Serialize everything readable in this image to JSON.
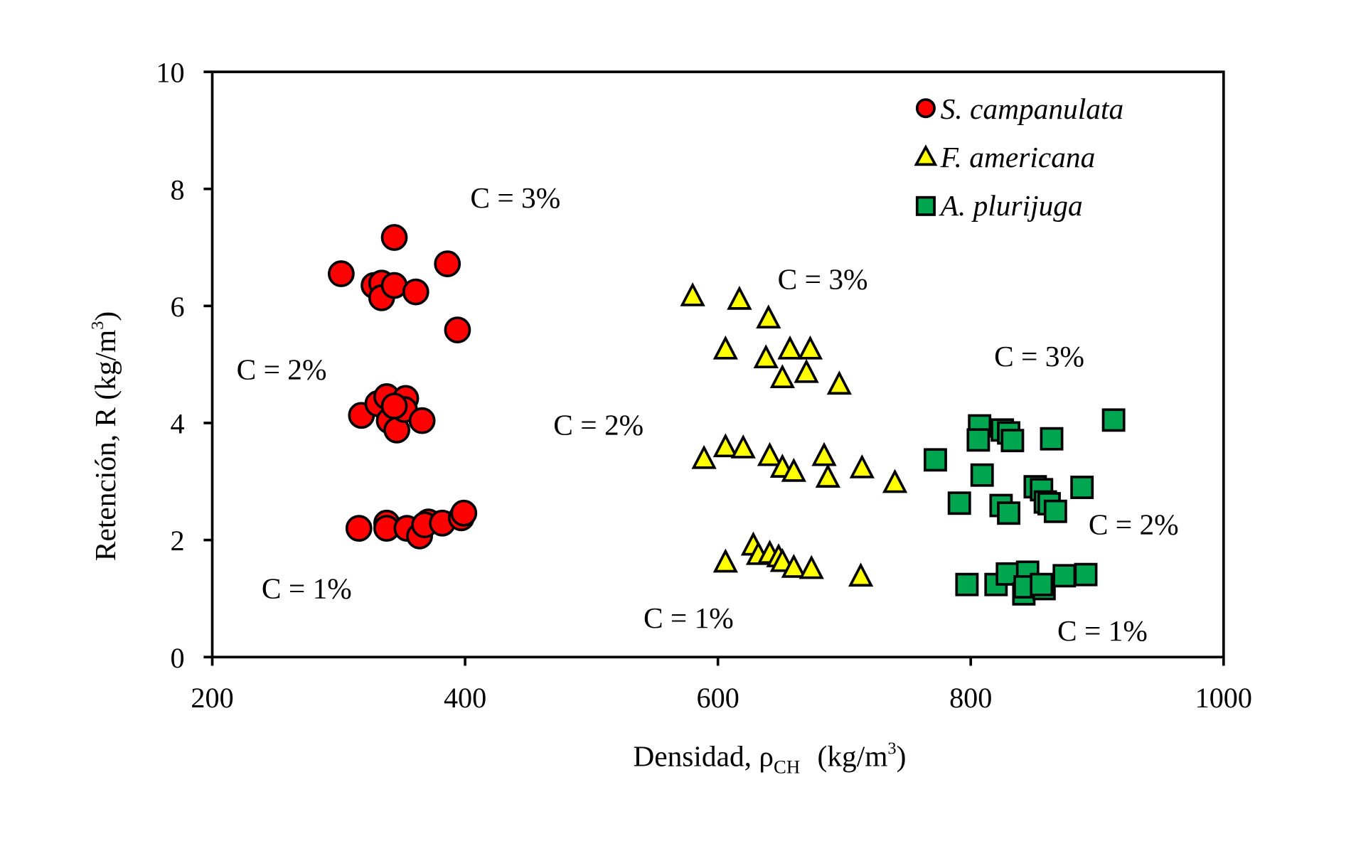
{
  "chart_data": {
    "type": "scatter",
    "title": "",
    "xlabel": "Densidad, ρCH (kg/m³)",
    "xlabel_parts": {
      "main": "Densidad, ρ",
      "sub": "CH",
      "unit": "(kg/m",
      "sup": "3",
      "close": ")"
    },
    "ylabel": "Retención, R (kg/m³)",
    "ylabel_parts": {
      "main": "Retención, R  (kg/m",
      "sup": "3",
      "close": ")"
    },
    "xlim": [
      200,
      1000
    ],
    "ylim": [
      0,
      10
    ],
    "xticks": [
      "200",
      "400",
      "600",
      "800",
      "1000"
    ],
    "yticks": [
      "0",
      "2",
      "4",
      "6",
      "8",
      "10"
    ],
    "grid": false,
    "legend_position": "top-right",
    "series": [
      {
        "name": "S. campanulata",
        "marker": "circle",
        "color": "#ff0000",
        "points": [
          [
            302,
            6.55
          ],
          [
            344,
            7.17
          ],
          [
            386,
            6.72
          ],
          [
            328,
            6.35
          ],
          [
            334,
            6.39
          ],
          [
            334,
            6.14
          ],
          [
            344,
            6.35
          ],
          [
            361,
            6.24
          ],
          [
            394,
            5.59
          ],
          [
            318,
            4.13
          ],
          [
            331,
            4.33
          ],
          [
            338,
            4.45
          ],
          [
            340,
            4.04
          ],
          [
            346,
            3.88
          ],
          [
            353,
            4.42
          ],
          [
            352,
            4.23
          ],
          [
            344,
            4.29
          ],
          [
            366,
            4.04
          ],
          [
            316,
            2.2
          ],
          [
            338,
            2.29
          ],
          [
            338,
            2.2
          ],
          [
            354,
            2.2
          ],
          [
            364,
            2.07
          ],
          [
            371,
            2.31
          ],
          [
            368,
            2.26
          ],
          [
            382,
            2.29
          ],
          [
            397,
            2.38
          ],
          [
            399,
            2.46
          ]
        ]
      },
      {
        "name": "F. americana",
        "marker": "triangle",
        "color": "#ffff00",
        "points": [
          [
            580,
            6.15
          ],
          [
            617,
            6.09
          ],
          [
            640,
            5.77
          ],
          [
            606,
            5.24
          ],
          [
            638,
            5.09
          ],
          [
            657,
            5.24
          ],
          [
            673,
            5.24
          ],
          [
            651,
            4.75
          ],
          [
            670,
            4.84
          ],
          [
            696,
            4.64
          ],
          [
            589,
            3.37
          ],
          [
            606,
            3.57
          ],
          [
            620,
            3.55
          ],
          [
            641,
            3.42
          ],
          [
            651,
            3.22
          ],
          [
            660,
            3.15
          ],
          [
            684,
            3.42
          ],
          [
            687,
            3.05
          ],
          [
            714,
            3.21
          ],
          [
            740,
            2.96
          ],
          [
            606,
            1.6
          ],
          [
            628,
            1.89
          ],
          [
            632,
            1.73
          ],
          [
            641,
            1.75
          ],
          [
            648,
            1.69
          ],
          [
            651,
            1.61
          ],
          [
            660,
            1.51
          ],
          [
            674,
            1.49
          ],
          [
            713,
            1.36
          ]
        ]
      },
      {
        "name": "A. plurijuga",
        "marker": "square",
        "color": "#00a550",
        "points": [
          [
            913,
            4.05
          ],
          [
            807,
            3.95
          ],
          [
            825,
            3.88
          ],
          [
            830,
            3.83
          ],
          [
            806,
            3.71
          ],
          [
            833,
            3.7
          ],
          [
            864,
            3.73
          ],
          [
            772,
            3.37
          ],
          [
            809,
            3.11
          ],
          [
            851,
            2.91
          ],
          [
            856,
            2.86
          ],
          [
            888,
            2.9
          ],
          [
            791,
            2.63
          ],
          [
            824,
            2.59
          ],
          [
            830,
            2.46
          ],
          [
            859,
            2.65
          ],
          [
            862,
            2.62
          ],
          [
            867,
            2.49
          ],
          [
            797,
            1.24
          ],
          [
            820,
            1.24
          ],
          [
            829,
            1.42
          ],
          [
            845,
            1.45
          ],
          [
            842,
            1.08
          ],
          [
            843,
            1.2
          ],
          [
            858,
            1.17
          ],
          [
            856,
            1.24
          ],
          [
            874,
            1.39
          ],
          [
            891,
            1.41
          ]
        ]
      }
    ],
    "annotations": [
      {
        "text": "C = 3%",
        "x": 2
      },
      {
        "text": "C = 2%",
        "x": 0
      },
      {
        "text": "C = 1%",
        "x": 0
      },
      {
        "text": "C = 3%",
        "x": 1
      },
      {
        "text": "C = 2%",
        "x": 1
      },
      {
        "text": "C = 1%",
        "x": 1
      },
      {
        "text": "C = 3%",
        "x": 2
      },
      {
        "text": "C = 2%",
        "x": 2
      },
      {
        "text": "C = 1%",
        "x": 2
      }
    ]
  }
}
